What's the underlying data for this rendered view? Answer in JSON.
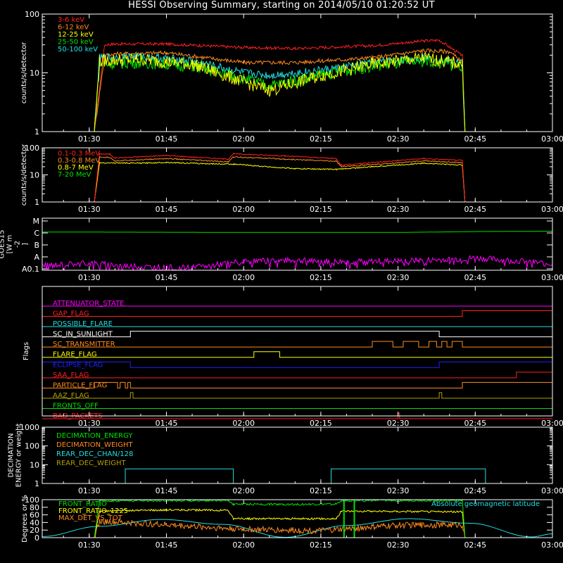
{
  "title": "HESSI Observing Summary, starting on 2014/05/10 01:20:52 UT",
  "colors": {
    "background": "#000000",
    "axes": "#ffffff",
    "red": "#ff2020",
    "orange": "#ff8a1e",
    "yellow": "#ffff00",
    "green": "#00e000",
    "cyan": "#20e0e0",
    "magenta": "#ff00ff",
    "blue": "#2020ff",
    "olive": "#b0a000"
  },
  "time_axis": {
    "start": "01:20:52",
    "end": "03:00",
    "ticks": [
      "01:30",
      "01:45",
      "02:00",
      "02:15",
      "02:30",
      "02:45",
      "03:00"
    ]
  },
  "chart_data": [
    {
      "type": "line",
      "panel": "low-energy",
      "ylabel": "counts/s/detector",
      "yscale": "log",
      "ylim": [
        1,
        100
      ],
      "yticks": [
        "1",
        "10",
        "100"
      ],
      "legend_placement": "top-left",
      "series": [
        {
          "name": "3-6 keV",
          "color": "#ff2020",
          "x": [
            "01:31",
            "01:33",
            "01:35",
            "01:45",
            "02:00",
            "02:10",
            "02:25",
            "02:35",
            "02:38",
            "02:42",
            "02:42.5",
            "02:43"
          ],
          "values": [
            1,
            30,
            31,
            31,
            27,
            26,
            29,
            35,
            36,
            21,
            20,
            1
          ]
        },
        {
          "name": "6-12 keV",
          "color": "#ff8a1e",
          "x": [
            "01:31",
            "01:33",
            "01:35",
            "01:45",
            "02:00",
            "02:10",
            "02:25",
            "02:35",
            "02:40",
            "02:42.5",
            "02:43"
          ],
          "values": [
            1,
            20,
            21,
            22,
            15,
            15,
            18,
            24,
            23,
            15,
            1
          ]
        },
        {
          "name": "12-25 keV",
          "color": "#ffff00",
          "x": [
            "01:31",
            "01:32",
            "01:40",
            "01:50",
            "02:00",
            "02:05",
            "02:15",
            "02:25",
            "02:35",
            "02:42.5",
            "02:43"
          ],
          "values": [
            1,
            16,
            17,
            14,
            7,
            5,
            9,
            14,
            18,
            14,
            1
          ]
        },
        {
          "name": "25-50 keV",
          "color": "#00e000",
          "x": [
            "01:31",
            "01:32",
            "01:40",
            "01:50",
            "02:00",
            "02:05",
            "02:15",
            "02:25",
            "02:35",
            "02:42.5",
            "02:43"
          ],
          "values": [
            1,
            14,
            15,
            13,
            8,
            6,
            9,
            13,
            16,
            13,
            1
          ]
        },
        {
          "name": "50-100 keV",
          "color": "#20e0e0",
          "x": [
            "01:31",
            "01:32",
            "01:40",
            "01:50",
            "02:00",
            "02:05",
            "02:15",
            "02:25",
            "02:35",
            "02:42.5",
            "02:43"
          ],
          "values": [
            1,
            18,
            19,
            16,
            10,
            9,
            11,
            15,
            18,
            15,
            1
          ]
        }
      ]
    },
    {
      "type": "line",
      "panel": "high-energy",
      "ylabel": "counts/s/detector",
      "yscale": "log",
      "ylim": [
        1,
        100
      ],
      "yticks": [
        "1",
        "10",
        "100"
      ],
      "legend_placement": "top-left",
      "series": [
        {
          "name": "0.1-0.3 MeV",
          "color": "#ff2020",
          "x": [
            "01:31",
            "01:32",
            "01:34",
            "01:35",
            "01:45",
            "01:57",
            "01:58",
            "02:06",
            "02:08",
            "02:18",
            "02:19",
            "02:30",
            "02:35",
            "02:42.5",
            "02:43"
          ],
          "values": [
            1,
            60,
            58,
            42,
            52,
            38,
            60,
            52,
            50,
            40,
            23,
            34,
            40,
            34,
            1
          ]
        },
        {
          "name": "0.3-0.8 MeV",
          "color": "#ff8a1e",
          "x": [
            "01:31",
            "01:32",
            "01:34",
            "01:35",
            "01:45",
            "01:57",
            "01:58",
            "02:06",
            "02:08",
            "02:18",
            "02:19",
            "02:30",
            "02:35",
            "02:42.5",
            "02:43"
          ],
          "values": [
            1,
            45,
            44,
            33,
            40,
            30,
            46,
            40,
            38,
            32,
            20,
            28,
            33,
            28,
            1
          ]
        },
        {
          "name": "0.8-7 MeV",
          "color": "#ffff00",
          "x": [
            "01:31",
            "01:32",
            "01:40",
            "01:45",
            "01:52",
            "01:58",
            "02:03",
            "02:10",
            "02:18",
            "02:25",
            "02:35",
            "02:42.5",
            "02:43"
          ],
          "values": [
            1,
            28,
            27,
            29,
            26,
            25,
            21,
            17,
            16,
            20,
            27,
            23,
            1
          ]
        },
        {
          "name": "7-20 MeV",
          "color": "#00e000",
          "x": [
            "01:20:52",
            "03:00"
          ],
          "values": [
            1,
            1
          ]
        }
      ]
    },
    {
      "type": "line",
      "panel": "goes",
      "ylabel": "GOES15 [W m-2]",
      "ylabel_lines": [
        "GOES15",
        "[W m",
        "-2",
        "]"
      ],
      "yticks": [
        "A0.1",
        "A",
        "B",
        "C",
        "M"
      ],
      "series": [
        {
          "name": "",
          "color": "#00e000",
          "x": [
            "01:20:52",
            "02:00",
            "02:30",
            "02:45",
            "03:00"
          ],
          "values": [
            "C1.2",
            "C1.1",
            "C1.1",
            "C1.3",
            "C1.4"
          ]
        },
        {
          "name": "",
          "color": "#ff00ff",
          "x": [
            "01:20:52",
            "01:30",
            "01:40",
            "01:50",
            "02:00",
            "02:10",
            "02:20",
            "02:30",
            "02:40",
            "02:45",
            "02:55",
            "03:00"
          ],
          "values": [
            "A0.2",
            "A0.3",
            "A0.15",
            "A0.12",
            "A0.45",
            "A0.5",
            "A0.4",
            "A0.45",
            "A0.6",
            "A0.8",
            "A0.4",
            "A0.25"
          ]
        }
      ]
    },
    {
      "type": "flags",
      "panel": "flags",
      "ylabel": "Flags",
      "rows": [
        {
          "name": "ATTENUATOR_STATE",
          "color": "#ff00ff",
          "segments": []
        },
        {
          "name": "GAP_FLAG",
          "color": "#ff2020",
          "segments": [
            [
              "02:42.5",
              "03:00"
            ]
          ]
        },
        {
          "name": "POSSIBLE_FLARE",
          "color": "#20e0e0",
          "segments": []
        },
        {
          "name": "SC_IN_SUNLIGHT",
          "color": "#ffffff",
          "segments": [
            [
              "01:38",
              "02:38"
            ]
          ]
        },
        {
          "name": "SC_TRANSMITTER",
          "color": "#ff8a1e",
          "segments": [
            [
              "02:25",
              "02:29"
            ],
            [
              "02:31",
              "02:34"
            ],
            [
              "02:36",
              "02:37.5"
            ],
            [
              "02:38.5",
              "02:39.5"
            ],
            [
              "02:40.5",
              "02:42.5"
            ]
          ]
        },
        {
          "name": "FLARE_FLAG",
          "color": "#ffff00",
          "segments": [
            [
              "02:02",
              "02:07"
            ]
          ]
        },
        {
          "name": "ECLIPSE_FLAG",
          "color": "#2020ff",
          "segments": [
            [
              "01:20:52",
              "01:38"
            ],
            [
              "02:38",
              "03:00"
            ]
          ]
        },
        {
          "name": "SAA_FLAG",
          "color": "#ff2020",
          "segments": [
            [
              "02:53",
              "03:00"
            ]
          ]
        },
        {
          "name": "PARTICLE_FLAG",
          "color": "#ff8a1e",
          "segments": [
            [
              "01:31",
              "01:35.5"
            ],
            [
              "01:36",
              "01:37"
            ],
            [
              "01:37.5",
              "01:38"
            ],
            [
              "02:42.5",
              "03:00"
            ]
          ]
        },
        {
          "name": "AAZ_FLAG",
          "color": "#b0a000",
          "segments": [
            [
              "01:38",
              "01:38.5"
            ],
            [
              "02:38",
              "02:38.5"
            ]
          ]
        },
        {
          "name": "FRONTS_OFF",
          "color": "#00e000",
          "segments": []
        },
        {
          "name": "BAD_PACKETS",
          "color": "#ff2020",
          "segments": [
            [
              "02:30",
              "02:30.3"
            ]
          ]
        }
      ]
    },
    {
      "type": "line",
      "panel": "decimation",
      "ylabel": "DECIMATION ENERGY or weight",
      "ylabel_lines": [
        "DECIMATION",
        "ENERGY or weight"
      ],
      "yscale": "log",
      "ylim": [
        1,
        1000
      ],
      "yticks": [
        "1",
        "10",
        "100",
        "1000"
      ],
      "legend_placement": "top-left",
      "series": [
        {
          "name": "DECIMATION_ENERGY",
          "color": "#00e000",
          "x": [
            "01:20:52",
            "03:00"
          ],
          "values": [
            1,
            1
          ]
        },
        {
          "name": "DECIMATION_WEIGHT",
          "color": "#ff8a1e",
          "x": [
            "01:20:52",
            "03:00"
          ],
          "values": [
            1,
            1
          ]
        },
        {
          "name": "REAR_DEC_CHAN/128",
          "color": "#20e0e0",
          "x": [
            "01:20:52",
            "01:37",
            "01:37",
            "01:58",
            "01:58",
            "02:17",
            "02:17",
            "02:47",
            "02:47",
            "03:00"
          ],
          "values": [
            1,
            1,
            6,
            6,
            1,
            1,
            6,
            6,
            1,
            1
          ]
        },
        {
          "name": "REAR_DEC_WEIGHT",
          "color": "#b0a000",
          "x": [
            "01:20:52",
            "03:00"
          ],
          "values": [
            1,
            1
          ]
        }
      ]
    },
    {
      "type": "line",
      "panel": "ratios",
      "ylabel": "Degrees or %",
      "ylim": [
        0,
        100
      ],
      "yticks": [
        "0",
        "20",
        "40",
        "60",
        "80",
        "100"
      ],
      "legend_placement": "top-left",
      "annotation": "Absolute geomagnetic latitude",
      "series": [
        {
          "name": "FRONT_RATIO",
          "color": "#00e000",
          "x": [
            "01:31",
            "01:32",
            "01:45",
            "01:57",
            "01:58",
            "02:18",
            "02:19",
            "02:42.5",
            "02:43"
          ],
          "values": [
            0,
            97,
            98,
            98,
            88,
            88,
            98,
            98,
            0
          ]
        },
        {
          "name": "FRONT_RATIO_1225",
          "color": "#ffff00",
          "x": [
            "01:31",
            "01:32",
            "01:45",
            "01:57",
            "01:58",
            "02:18",
            "02:19",
            "02:42.5",
            "02:43"
          ],
          "values": [
            0,
            70,
            73,
            72,
            50,
            50,
            70,
            68,
            0
          ]
        },
        {
          "name": "MAX_DET_VS_TOT",
          "color": "#ff8a1e",
          "x": [
            "01:31",
            "01:32",
            "01:45",
            "02:00",
            "02:15",
            "02:30",
            "02:42.5",
            "02:43"
          ],
          "values": [
            0,
            43,
            34,
            22,
            18,
            33,
            34,
            0
          ]
        },
        {
          "name": "Absolute geomagnetic latitude",
          "color": "#20e0e0",
          "x": [
            "01:20:52",
            "01:32",
            "01:44",
            "01:56",
            "02:08",
            "02:20",
            "02:32",
            "02:44",
            "02:56",
            "03:00"
          ],
          "values": [
            3,
            30,
            48,
            35,
            1,
            32,
            50,
            38,
            2,
            10
          ]
        }
      ]
    }
  ]
}
